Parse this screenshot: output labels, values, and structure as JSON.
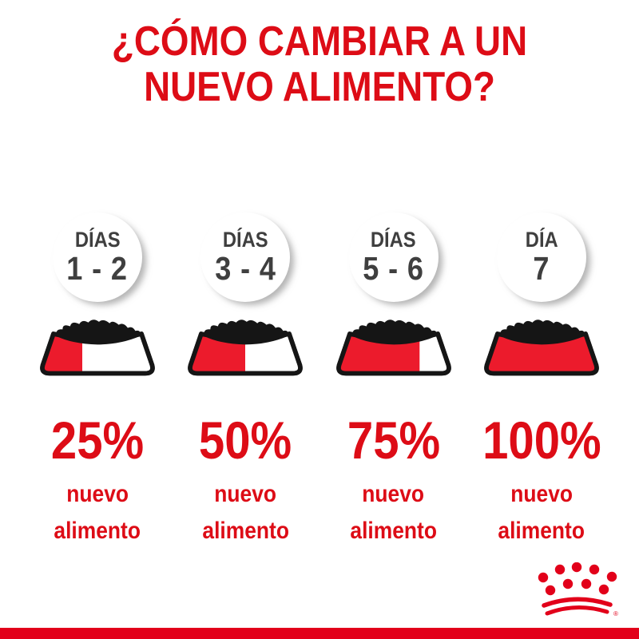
{
  "title": {
    "line1": "¿CÓMO CAMBIAR A UN",
    "line2": "NUEVO ALIMENTO?"
  },
  "columns": [
    {
      "day_label": "DÍAS",
      "day_range": "1 - 2",
      "fill_percent": 25,
      "percent_label": "25%",
      "food_line1": "nuevo",
      "food_line2": "alimento"
    },
    {
      "day_label": "DÍAS",
      "day_range": "3 - 4",
      "fill_percent": 50,
      "percent_label": "50%",
      "food_line1": "nuevo",
      "food_line2": "alimento"
    },
    {
      "day_label": "DÍAS",
      "day_range": "5 - 6",
      "fill_percent": 75,
      "percent_label": "75%",
      "food_line1": "nuevo",
      "food_line2": "alimento"
    },
    {
      "day_label": "DÍA",
      "day_range": "7",
      "fill_percent": 100,
      "percent_label": "100%",
      "food_line1": "nuevo",
      "food_line2": "alimento"
    }
  ],
  "logo": {
    "name": "royal-canin-crown",
    "registered_symbol": "®"
  },
  "colors": {
    "brand_red": "#dd0c16",
    "bowl_red": "#ec1b2c",
    "footer_red": "#e2001a",
    "crown_red": "#e2001a",
    "day_text_gray": "#3f3f3f",
    "outline_black": "#151515"
  }
}
